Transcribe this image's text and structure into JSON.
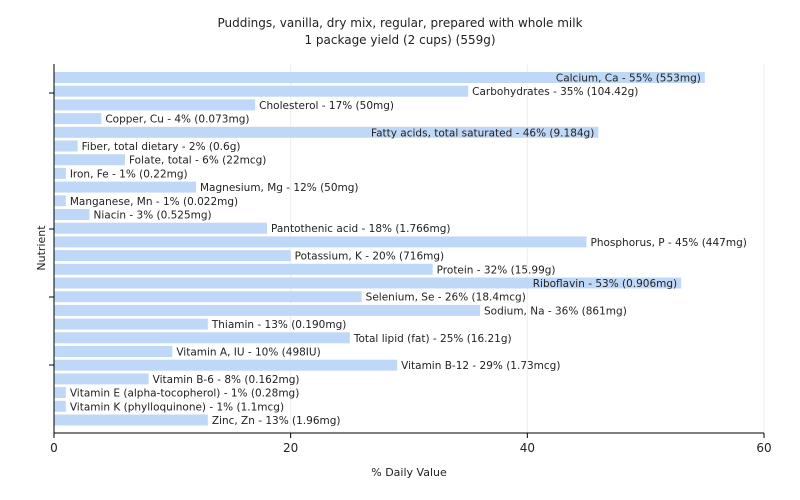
{
  "chart_data": {
    "type": "bar",
    "orientation": "horizontal",
    "title": "Puddings, vanilla, dry mix, regular, prepared with whole milk",
    "subtitle": "1 package yield (2 cups) (559g)",
    "xlabel": "% Daily Value",
    "ylabel": "Nutrient",
    "xlim": [
      0,
      60
    ],
    "xticks": [
      0,
      20,
      40,
      60
    ],
    "grid": true,
    "bar_color": "#c0d8f8",
    "categories": [
      "Calcium, Ca",
      "Carbohydrates",
      "Cholesterol",
      "Copper, Cu",
      "Fatty acids, total saturated",
      "Fiber, total dietary",
      "Folate, total",
      "Iron, Fe",
      "Magnesium, Mg",
      "Manganese, Mn",
      "Niacin",
      "Pantothenic acid",
      "Phosphorus, P",
      "Potassium, K",
      "Protein",
      "Riboflavin",
      "Selenium, Se",
      "Sodium, Na",
      "Thiamin",
      "Total lipid (fat)",
      "Vitamin A, IU",
      "Vitamin B-12",
      "Vitamin B-6",
      "Vitamin E (alpha-tocopherol)",
      "Vitamin K (phylloquinone)",
      "Zinc, Zn"
    ],
    "values": [
      55,
      35,
      17,
      4,
      46,
      2,
      6,
      1,
      12,
      1,
      3,
      18,
      45,
      20,
      32,
      53,
      26,
      36,
      13,
      25,
      10,
      29,
      8,
      1,
      1,
      13
    ],
    "labels": [
      "Calcium, Ca - 55% (553mg)",
      "Carbohydrates - 35% (104.42g)",
      "Cholesterol - 17% (50mg)",
      "Copper, Cu - 4% (0.073mg)",
      "Fatty acids, total saturated - 46% (9.184g)",
      "Fiber, total dietary - 2% (0.6g)",
      "Folate, total - 6% (22mcg)",
      "Iron, Fe - 1% (0.22mg)",
      "Magnesium, Mg - 12% (50mg)",
      "Manganese, Mn - 1% (0.022mg)",
      "Niacin - 3% (0.525mg)",
      "Pantothenic acid - 18% (1.766mg)",
      "Phosphorus, P - 45% (447mg)",
      "Potassium, K - 20% (716mg)",
      "Protein - 32% (15.99g)",
      "Riboflavin - 53% (0.906mg)",
      "Selenium, Se - 26% (18.4mcg)",
      "Sodium, Na - 36% (861mg)",
      "Thiamin - 13% (0.190mg)",
      "Total lipid (fat) - 25% (16.21g)",
      "Vitamin A, IU - 10% (498IU)",
      "Vitamin B-12 - 29% (1.73mcg)",
      "Vitamin B-6 - 8% (0.162mg)",
      "Vitamin E (alpha-tocopherol) - 1% (0.28mg)",
      "Vitamin K (phylloquinone) - 1% (1.1mcg)",
      "Zinc, Zn - 13% (1.96mg)"
    ]
  }
}
